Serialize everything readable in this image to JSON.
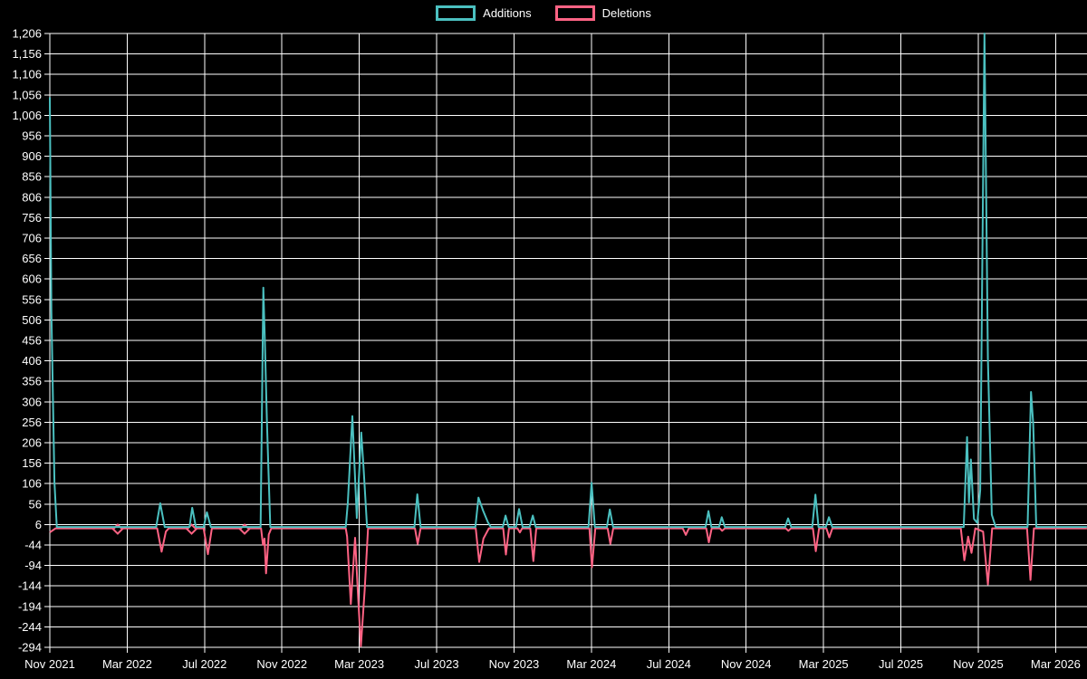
{
  "legend": {
    "items": [
      {
        "label": "Additions",
        "color": "#4bc0c0"
      },
      {
        "label": "Deletions",
        "color": "#ff6384"
      }
    ]
  },
  "chart_data": {
    "type": "line",
    "title": "",
    "background_color": "#000000",
    "grid_color": "#ffffff",
    "text_color": "#ffffff",
    "legend_position": "top-center",
    "grid": true,
    "x_axis": {
      "unit": "months since Nov 2021 (fractional, weekly data)",
      "tick_interval_months": 4,
      "labels": [
        "Nov 2021",
        "Mar 2022",
        "Jul 2022",
        "Nov 2022",
        "Mar 2023",
        "Jul 2023",
        "Nov 2023",
        "Mar 2024",
        "Jul 2024",
        "Nov 2024",
        "Mar 2025",
        "Jul 2025",
        "Nov 2025",
        "Mar 2026"
      ],
      "domain_months": [
        0,
        53.62
      ]
    },
    "y_axis": {
      "min": -294,
      "max": 1206,
      "step": 50,
      "tick_labels": [
        "1,206",
        "1,156",
        "1,106",
        "1,056",
        "1,006",
        "956",
        "906",
        "856",
        "806",
        "756",
        "706",
        "656",
        "606",
        "556",
        "506",
        "456",
        "406",
        "356",
        "306",
        "256",
        "206",
        "156",
        "106",
        "56",
        "6",
        "-44",
        "-94",
        "-144",
        "-194",
        "-244",
        "-294"
      ]
    },
    "baseline_value": 0,
    "series": [
      {
        "name": "Additions",
        "color": "#4bc0c0",
        "points": [
          [
            0,
            1050
          ],
          [
            0.08,
            530
          ],
          [
            0.16,
            320
          ],
          [
            0.24,
            110
          ],
          [
            0.36,
            0
          ],
          [
            5.5,
            0
          ],
          [
            5.71,
            58
          ],
          [
            5.94,
            0
          ],
          [
            7.22,
            0
          ],
          [
            7.36,
            47
          ],
          [
            7.55,
            0
          ],
          [
            7.95,
            0
          ],
          [
            8.12,
            36
          ],
          [
            8.32,
            0
          ],
          [
            10.9,
            0
          ],
          [
            11.04,
            585
          ],
          [
            11.12,
            455
          ],
          [
            11.22,
            264
          ],
          [
            11.3,
            143
          ],
          [
            11.4,
            0
          ],
          [
            15.3,
            0
          ],
          [
            15.41,
            60
          ],
          [
            15.64,
            271
          ],
          [
            15.87,
            22
          ],
          [
            16.1,
            231
          ],
          [
            16.22,
            147
          ],
          [
            16.4,
            0
          ],
          [
            18.85,
            0
          ],
          [
            19.0,
            80
          ],
          [
            19.17,
            0
          ],
          [
            22.0,
            0
          ],
          [
            22.16,
            72
          ],
          [
            22.4,
            40
          ],
          [
            22.65,
            12
          ],
          [
            22.8,
            0
          ],
          [
            23.42,
            0
          ],
          [
            23.56,
            28
          ],
          [
            23.72,
            0
          ],
          [
            24.1,
            0
          ],
          [
            24.26,
            44
          ],
          [
            24.44,
            0
          ],
          [
            24.8,
            0
          ],
          [
            24.97,
            28
          ],
          [
            25.12,
            0
          ],
          [
            27.85,
            0
          ],
          [
            28.01,
            108
          ],
          [
            28.18,
            0
          ],
          [
            28.8,
            0
          ],
          [
            28.95,
            43
          ],
          [
            29.12,
            0
          ],
          [
            33.9,
            0
          ],
          [
            34.05,
            39
          ],
          [
            34.2,
            0
          ],
          [
            34.6,
            0
          ],
          [
            34.74,
            24
          ],
          [
            34.9,
            0
          ],
          [
            38.02,
            0
          ],
          [
            38.17,
            21
          ],
          [
            38.33,
            0
          ],
          [
            39.42,
            0
          ],
          [
            39.58,
            79
          ],
          [
            39.74,
            0
          ],
          [
            40.12,
            0
          ],
          [
            40.28,
            24
          ],
          [
            40.45,
            0
          ],
          [
            47.25,
            0
          ],
          [
            47.42,
            220
          ],
          [
            47.52,
            60
          ],
          [
            47.62,
            165
          ],
          [
            47.78,
            20
          ],
          [
            47.95,
            10
          ],
          [
            48.1,
            90
          ],
          [
            48.32,
            1206
          ],
          [
            48.5,
            410
          ],
          [
            48.7,
            30
          ],
          [
            48.9,
            0
          ],
          [
            50.55,
            0
          ],
          [
            50.73,
            330
          ],
          [
            50.84,
            253
          ],
          [
            51.0,
            0
          ],
          [
            53.62,
            0
          ]
        ],
        "isolated_markers": []
      },
      {
        "name": "Deletions",
        "color": "#ff6384",
        "points": [
          [
            0,
            -10
          ],
          [
            0.3,
            0
          ],
          [
            5.55,
            0
          ],
          [
            5.78,
            -57
          ],
          [
            6.0,
            -8
          ],
          [
            6.15,
            0
          ],
          [
            7.95,
            0
          ],
          [
            8.17,
            -63
          ],
          [
            8.38,
            0
          ],
          [
            10.92,
            0
          ],
          [
            11.02,
            -40
          ],
          [
            11.1,
            -25
          ],
          [
            11.18,
            -110
          ],
          [
            11.32,
            -15
          ],
          [
            11.45,
            0
          ],
          [
            15.3,
            0
          ],
          [
            15.37,
            -20
          ],
          [
            15.56,
            -185
          ],
          [
            15.78,
            -23
          ],
          [
            15.94,
            -170
          ],
          [
            16.08,
            -288
          ],
          [
            16.28,
            -150
          ],
          [
            16.45,
            0
          ],
          [
            18.88,
            0
          ],
          [
            19.02,
            -38
          ],
          [
            19.17,
            0
          ],
          [
            22.02,
            0
          ],
          [
            22.2,
            -82
          ],
          [
            22.42,
            -25
          ],
          [
            22.7,
            0
          ],
          [
            23.44,
            0
          ],
          [
            23.58,
            -64
          ],
          [
            23.74,
            0
          ],
          [
            24.18,
            0
          ],
          [
            24.3,
            -10
          ],
          [
            24.42,
            0
          ],
          [
            24.84,
            0
          ],
          [
            25.0,
            -80
          ],
          [
            25.15,
            0
          ],
          [
            27.9,
            0
          ],
          [
            28.03,
            -95
          ],
          [
            28.2,
            0
          ],
          [
            28.84,
            0
          ],
          [
            28.98,
            -38
          ],
          [
            29.13,
            0
          ],
          [
            32.72,
            0
          ],
          [
            32.88,
            -16
          ],
          [
            33.04,
            0
          ],
          [
            33.94,
            0
          ],
          [
            34.07,
            -34
          ],
          [
            34.22,
            0
          ],
          [
            34.64,
            0
          ],
          [
            34.76,
            -6
          ],
          [
            34.9,
            0
          ],
          [
            38.05,
            0
          ],
          [
            38.18,
            -6
          ],
          [
            38.32,
            0
          ],
          [
            39.45,
            0
          ],
          [
            39.6,
            -56
          ],
          [
            39.77,
            0
          ],
          [
            40.15,
            0
          ],
          [
            40.3,
            -22
          ],
          [
            40.46,
            0
          ],
          [
            47.1,
            0
          ],
          [
            47.28,
            -78
          ],
          [
            47.48,
            -20
          ],
          [
            47.65,
            -60
          ],
          [
            47.85,
            0
          ],
          [
            48.25,
            -8
          ],
          [
            48.5,
            -137
          ],
          [
            48.72,
            0
          ],
          [
            50.52,
            0
          ],
          [
            50.7,
            -126
          ],
          [
            50.88,
            0
          ],
          [
            53.62,
            0
          ]
        ],
        "isolated_markers": [
          [
            3.51,
            -2
          ],
          [
            7.33,
            -2
          ],
          [
            10.07,
            -2
          ]
        ]
      }
    ]
  }
}
